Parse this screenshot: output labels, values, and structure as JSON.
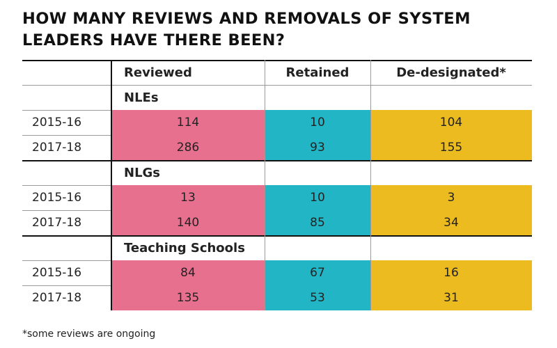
{
  "title_lines": [
    "HOW MANY REVIEWS AND REMOVALS OF SYSTEM",
    "LEADERS HAVE THERE BEEN?"
  ],
  "footnote": "*some reviews are ongoing",
  "colors": {
    "reviewed": "#e8708f",
    "retained": "#21b5c5",
    "dedesignated": "#ecbb1f"
  },
  "chart_data": {
    "type": "table",
    "title": "HOW MANY REVIEWS AND REMOVALS OF SYSTEM LEADERS HAVE THERE BEEN?",
    "columns": [
      "Reviewed",
      "Retained",
      "De-designated*"
    ],
    "sections": [
      {
        "name": "NLEs",
        "rows": [
          {
            "year": "2015-16",
            "values": [
              114,
              10,
              104
            ]
          },
          {
            "year": "2017-18",
            "values": [
              286,
              93,
              155
            ]
          }
        ]
      },
      {
        "name": "NLGs",
        "rows": [
          {
            "year": "2015-16",
            "values": [
              13,
              10,
              3
            ]
          },
          {
            "year": "2017-18",
            "values": [
              140,
              85,
              34
            ]
          }
        ]
      },
      {
        "name": "Teaching Schools",
        "rows": [
          {
            "year": "2015-16",
            "values": [
              84,
              67,
              16
            ]
          },
          {
            "year": "2017-18",
            "values": [
              135,
              53,
              31
            ]
          }
        ]
      }
    ]
  }
}
